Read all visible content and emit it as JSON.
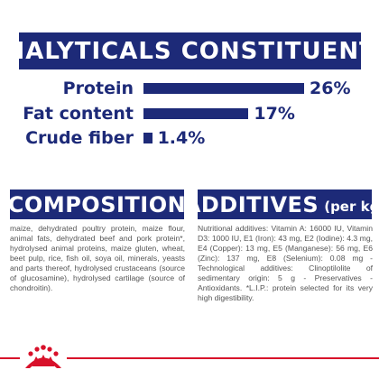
{
  "colors": {
    "brand_blue": "#1d2a78",
    "brand_red": "#d8112a",
    "text_grey": "#555555"
  },
  "analytics": {
    "title": "ANALYTICALS CONSTITUENTS",
    "rows": [
      {
        "label": "Protein",
        "value": "26%",
        "percent": 26
      },
      {
        "label": "Fat content",
        "value": "17%",
        "percent": 17
      },
      {
        "label": "Crude fiber",
        "value": "1.4%",
        "percent": 1.4
      }
    ]
  },
  "composition": {
    "title": "COMPOSITION",
    "text": "maize, dehydrated poultry protein, maize flour, animal fats, dehydrated beef and pork protein*, hydrolysed animal proteins, maize gluten, wheat, beet pulp, rice, fish oil, soya oil, minerals, yeasts and parts thereof, hydrolysed crustaceans (source of glucosamine), hydrolysed cartilage (source of chondroitin)."
  },
  "additives": {
    "title": "ADDITIVES",
    "unit": "(per kg)",
    "text": "Nutritional additives: Vitamin A: 16000 IU, Vitamin D3: 1000 IU, E1 (Iron): 43 mg, E2 (Iodine): 4.3 mg, E4 (Copper): 13 mg, E5 (Manganese): 56 mg, E6 (Zinc): 137 mg, E8 (Selenium): 0.08 mg - Technological additives: Clinoptilolite of sedimentary origin: 5 g - Preservatives - Antioxidants. *L.I.P.: protein selected for its very high digestibility."
  },
  "footer": {
    "logo_icon": "royal-canin-crown-logo-icon"
  }
}
